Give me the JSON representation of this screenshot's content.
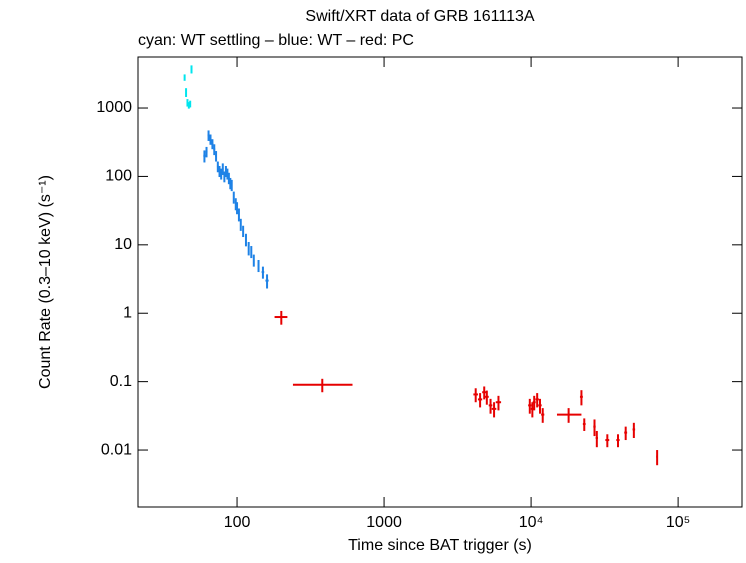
{
  "chart_data": {
    "type": "scatter",
    "title": "Swift/XRT data of GRB 161113A",
    "subtitle": "cyan: WT settling – blue: WT – red: PC",
    "x_label": "Time since BAT trigger (s)",
    "y_label": "Count Rate (0.3–10 keV) (s⁻¹)",
    "xscale": "log",
    "yscale": "log",
    "xlim": [
      21.2,
      272000
    ],
    "ylim": [
      0.00147,
      5570
    ],
    "xticks": [
      100,
      1000,
      {
        "value": 10000,
        "label": "10⁴"
      },
      {
        "value": 100000,
        "label": "10⁵"
      }
    ],
    "yticks": [
      0.01,
      0.1,
      1,
      10,
      100,
      1000
    ],
    "series": [
      {
        "color": "#00e5ee",
        "x": [
          44,
          45,
          46,
          47,
          48,
          49
        ],
        "values": [
          2800,
          1700,
          1200,
          1100,
          1150,
          3700
        ],
        "y_err": [
          300,
          250,
          150,
          120,
          130,
          500
        ],
        "x_err_minus": [
          0.4,
          0.4,
          0.4,
          0.4,
          0.4,
          0.4
        ],
        "x_err_plus": [
          0.4,
          0.4,
          0.4,
          0.4,
          0.4,
          0.4
        ]
      },
      {
        "color": "#1e82e6",
        "x": [
          60,
          62,
          64,
          66,
          68,
          70,
          72,
          74,
          76,
          78,
          80,
          82,
          84,
          86,
          88,
          90,
          92,
          95,
          98,
          100,
          103,
          106,
          110,
          115,
          120,
          125,
          130,
          140,
          150,
          160
        ],
        "values": [
          200,
          230,
          400,
          350,
          300,
          250,
          200,
          140,
          120,
          110,
          130,
          100,
          120,
          110,
          95,
          80,
          75,
          50,
          40,
          35,
          28,
          20,
          16,
          12,
          9,
          8,
          6,
          5,
          4,
          3
        ],
        "y_err": [
          40,
          40,
          70,
          60,
          50,
          45,
          35,
          25,
          22,
          20,
          25,
          18,
          22,
          20,
          18,
          15,
          14,
          10,
          8,
          7,
          6,
          4,
          3,
          2.5,
          2,
          1.6,
          1.2,
          1,
          0.8,
          0.7
        ],
        "x_err_minus": [
          1,
          1,
          1,
          1,
          1,
          1,
          1,
          1,
          1,
          1,
          1,
          1,
          1,
          1,
          1,
          1,
          1,
          1,
          1,
          1,
          1,
          1,
          1,
          1,
          1,
          1,
          1,
          2,
          3,
          4
        ],
        "x_err_plus": [
          1,
          1,
          1,
          1,
          1,
          1,
          1,
          1,
          1,
          1,
          1,
          1,
          1,
          1,
          1,
          1,
          1,
          1,
          1,
          1,
          1,
          1,
          1,
          1,
          1,
          1,
          1,
          2,
          3,
          4
        ]
      },
      {
        "color": "#e60000",
        "x": [
          200,
          380,
          4200,
          4500,
          4800,
          5000,
          5300,
          5600,
          6000,
          9800,
          10200,
          10500,
          11000,
          11500,
          12000,
          18000,
          22000,
          23000,
          27000,
          28000,
          33000,
          39000,
          44000,
          50000,
          72000
        ],
        "values": [
          0.88,
          0.09,
          0.065,
          0.055,
          0.07,
          0.06,
          0.045,
          0.04,
          0.05,
          0.045,
          0.04,
          0.05,
          0.055,
          0.045,
          0.033,
          0.033,
          0.06,
          0.024,
          0.022,
          0.015,
          0.014,
          0.014,
          0.018,
          0.02,
          0.008
        ],
        "y_err": [
          0.2,
          0.02,
          0.015,
          0.013,
          0.015,
          0.014,
          0.011,
          0.01,
          0.012,
          0.011,
          0.01,
          0.012,
          0.013,
          0.011,
          0.008,
          0.008,
          0.015,
          0.005,
          0.006,
          0.004,
          0.003,
          0.003,
          0.004,
          0.005,
          0.002
        ],
        "x_err_minus": [
          20,
          140,
          150,
          150,
          150,
          150,
          150,
          200,
          250,
          250,
          250,
          250,
          300,
          300,
          300,
          3000,
          500,
          500,
          500,
          500,
          1000,
          1000,
          1000,
          1000,
          1000
        ],
        "x_err_plus": [
          20,
          230,
          150,
          150,
          150,
          150,
          150,
          200,
          250,
          250,
          250,
          250,
          300,
          300,
          300,
          4000,
          500,
          500,
          500,
          500,
          1000,
          1000,
          1000,
          1000,
          1000
        ]
      }
    ]
  }
}
